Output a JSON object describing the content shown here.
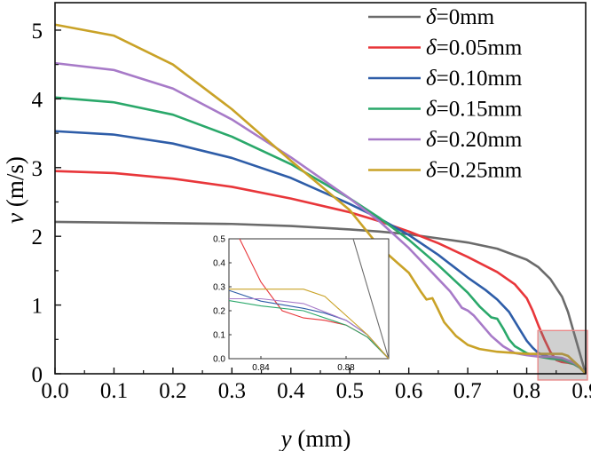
{
  "chart_data": {
    "type": "line",
    "title": "",
    "xlabel": "y (mm)",
    "xlabel_var": "y",
    "xlabel_unit": " (mm)",
    "ylabel": "v (m/s)",
    "ylabel_var": "v",
    "ylabel_unit": " (m/s)",
    "xlim": [
      0.0,
      0.9
    ],
    "ylim": [
      0,
      5.4
    ],
    "xticks": [
      "0.0",
      "0.1",
      "0.2",
      "0.3",
      "0.4",
      "0.5",
      "0.6",
      "0.7",
      "0.8",
      "0.9"
    ],
    "yticks": [
      "0",
      "1",
      "2",
      "3",
      "4",
      "5"
    ],
    "legend_position": "top-right",
    "series": [
      {
        "name": "δ=0mm",
        "legend_symbol": "δ",
        "legend_value": "=0mm",
        "color": "#6b6b6b",
        "x": [
          0,
          0.1,
          0.2,
          0.3,
          0.4,
          0.5,
          0.55,
          0.6,
          0.65,
          0.7,
          0.75,
          0.8,
          0.82,
          0.84,
          0.86,
          0.87,
          0.88,
          0.89,
          0.9
        ],
        "y": [
          2.21,
          2.2,
          2.19,
          2.18,
          2.15,
          2.1,
          2.07,
          2.03,
          1.97,
          1.91,
          1.82,
          1.66,
          1.55,
          1.38,
          1.12,
          0.9,
          0.6,
          0.3,
          0.0
        ]
      },
      {
        "name": "δ=0.05mm",
        "legend_symbol": "δ",
        "legend_value": "=0.05mm",
        "color": "#e8363a",
        "x": [
          0,
          0.1,
          0.2,
          0.3,
          0.4,
          0.5,
          0.55,
          0.6,
          0.65,
          0.7,
          0.75,
          0.78,
          0.8,
          0.81,
          0.82,
          0.83,
          0.84,
          0.85,
          0.86,
          0.87,
          0.88,
          0.89,
          0.9
        ],
        "y": [
          2.95,
          2.92,
          2.84,
          2.72,
          2.55,
          2.35,
          2.22,
          2.07,
          1.9,
          1.7,
          1.48,
          1.3,
          1.1,
          0.92,
          0.7,
          0.5,
          0.32,
          0.2,
          0.17,
          0.16,
          0.14,
          0.09,
          0.0
        ]
      },
      {
        "name": "δ=0.10mm",
        "legend_symbol": "δ",
        "legend_value": "=0.10mm",
        "color": "#2e5da8",
        "x": [
          0,
          0.1,
          0.2,
          0.3,
          0.4,
          0.5,
          0.55,
          0.6,
          0.65,
          0.7,
          0.73,
          0.75,
          0.77,
          0.79,
          0.8,
          0.81,
          0.82,
          0.84,
          0.86,
          0.87,
          0.88,
          0.89,
          0.9
        ],
        "y": [
          3.53,
          3.48,
          3.35,
          3.14,
          2.85,
          2.47,
          2.26,
          2.02,
          1.73,
          1.4,
          1.22,
          1.08,
          0.9,
          0.62,
          0.48,
          0.38,
          0.3,
          0.24,
          0.21,
          0.19,
          0.16,
          0.1,
          0.0
        ]
      },
      {
        "name": "δ=0.15mm",
        "legend_symbol": "δ",
        "legend_value": "=0.15mm",
        "color": "#2aa86a",
        "x": [
          0,
          0.1,
          0.2,
          0.3,
          0.4,
          0.5,
          0.55,
          0.6,
          0.65,
          0.7,
          0.72,
          0.74,
          0.75,
          0.76,
          0.77,
          0.78,
          0.8,
          0.82,
          0.84,
          0.86,
          0.88,
          0.89,
          0.9
        ],
        "y": [
          4.02,
          3.95,
          3.77,
          3.45,
          3.05,
          2.55,
          2.27,
          1.95,
          1.58,
          1.18,
          0.98,
          0.82,
          0.8,
          0.66,
          0.5,
          0.4,
          0.3,
          0.25,
          0.22,
          0.2,
          0.14,
          0.09,
          0.0
        ]
      },
      {
        "name": "δ=0.20mm",
        "legend_symbol": "δ",
        "legend_value": "=0.20mm",
        "color": "#a77ac8",
        "x": [
          0,
          0.1,
          0.2,
          0.3,
          0.4,
          0.5,
          0.55,
          0.6,
          0.65,
          0.67,
          0.69,
          0.7,
          0.71,
          0.72,
          0.74,
          0.76,
          0.78,
          0.8,
          0.82,
          0.84,
          0.86,
          0.88,
          0.89,
          0.9
        ],
        "y": [
          4.52,
          4.42,
          4.15,
          3.7,
          3.15,
          2.55,
          2.22,
          1.83,
          1.38,
          1.2,
          0.96,
          0.92,
          0.85,
          0.75,
          0.55,
          0.4,
          0.3,
          0.27,
          0.25,
          0.25,
          0.23,
          0.16,
          0.1,
          0.0
        ]
      },
      {
        "name": "δ=0.25mm",
        "legend_symbol": "δ",
        "legend_value": "=0.25mm",
        "color": "#c9a227",
        "x": [
          0,
          0.1,
          0.2,
          0.3,
          0.4,
          0.5,
          0.55,
          0.58,
          0.6,
          0.62,
          0.63,
          0.64,
          0.65,
          0.66,
          0.68,
          0.7,
          0.72,
          0.75,
          0.8,
          0.84,
          0.86,
          0.87,
          0.88,
          0.89,
          0.9
        ],
        "y": [
          5.08,
          4.92,
          4.5,
          3.85,
          3.1,
          2.38,
          1.85,
          1.62,
          1.47,
          1.2,
          1.08,
          1.1,
          0.93,
          0.75,
          0.55,
          0.42,
          0.36,
          0.32,
          0.29,
          0.29,
          0.29,
          0.26,
          0.18,
          0.1,
          0.0
        ]
      }
    ],
    "inset": {
      "xlim": [
        0.825,
        0.9
      ],
      "ylim": [
        0,
        0.5
      ],
      "xticks": [
        "0.84",
        "0.88"
      ],
      "yticks": [
        "0.0",
        "0.1",
        "0.2",
        "0.3",
        "0.4",
        "0.5"
      ],
      "highlight_region": {
        "x": [
          0.825,
          0.9
        ],
        "y": [
          0,
          0.5
        ]
      }
    }
  }
}
